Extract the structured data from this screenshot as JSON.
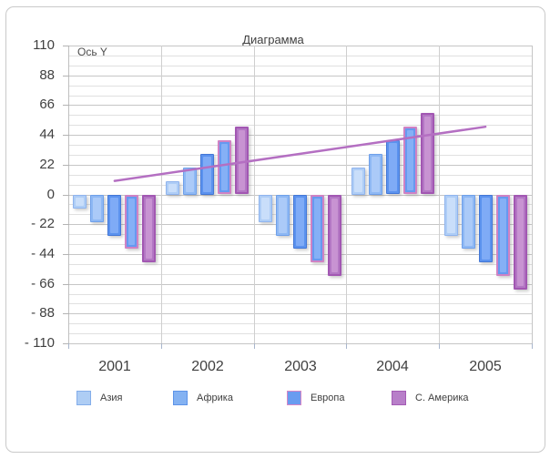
{
  "title": "Диаграмма",
  "y_axis_title": "Ось Y",
  "chart_data": {
    "type": "bar",
    "title": "Диаграмма",
    "ylabel": "Ось Y",
    "xlabel": "",
    "categories": [
      "2001",
      "2002",
      "2003",
      "2004",
      "2005"
    ],
    "series": [
      {
        "name": "Азия",
        "values": [
          -10,
          10,
          -20,
          20,
          -30
        ],
        "fill": "#aecdf6",
        "stroke": "#8fb4ee",
        "inner": "#c9defa"
      },
      {
        "name": "Африка",
        "values": [
          -20,
          20,
          -30,
          30,
          -40
        ],
        "fill": "#8eb8f4",
        "stroke": "#6fa0ea",
        "inner": "#abcaf8"
      },
      {
        "name": "",
        "values": [
          -30,
          30,
          -40,
          40,
          -50
        ],
        "fill": "#5b92ee",
        "stroke": "#4377d6",
        "inner": "#7fabf6"
      },
      {
        "name": "Европа",
        "values": [
          -40,
          40,
          -50,
          50,
          -60
        ],
        "fill": "#6699f0",
        "stroke": "#cf82c4",
        "inner": "#85b0f6"
      },
      {
        "name": "С. Америка",
        "values": [
          -50,
          50,
          -60,
          60,
          -70
        ],
        "fill": "#b377c4",
        "stroke": "#a257b2",
        "inner": "#c893d2"
      }
    ],
    "trend_line": {
      "color": "#b46fc2",
      "start_value": 10,
      "end_value": 50,
      "values": [
        10,
        20,
        30,
        40,
        50
      ]
    },
    "y_ticks": [
      110,
      88,
      66,
      44,
      22,
      0,
      -22,
      -44,
      -66,
      -88,
      -110
    ],
    "y_ticks_display": [
      "110",
      "88",
      "66",
      "44",
      "22",
      "0",
      "- 22",
      "- 44",
      "- 66",
      "- 88",
      "- 110"
    ],
    "ylim": [
      -110,
      110
    ],
    "grid": "major+minor",
    "legend_position": "bottom",
    "legend": {
      "items": [
        {
          "label": "Азия",
          "fill": "#aecdf4",
          "stroke": "#84aeea"
        },
        {
          "label": "Африка",
          "fill": "#84b2f2",
          "stroke": "#5d93e8"
        },
        {
          "label": "Европа",
          "fill": "#699cf0",
          "stroke": "#d886c6"
        },
        {
          "label": "С. Америка",
          "fill": "#b87fc9",
          "stroke": "#a45bb5"
        }
      ]
    }
  }
}
